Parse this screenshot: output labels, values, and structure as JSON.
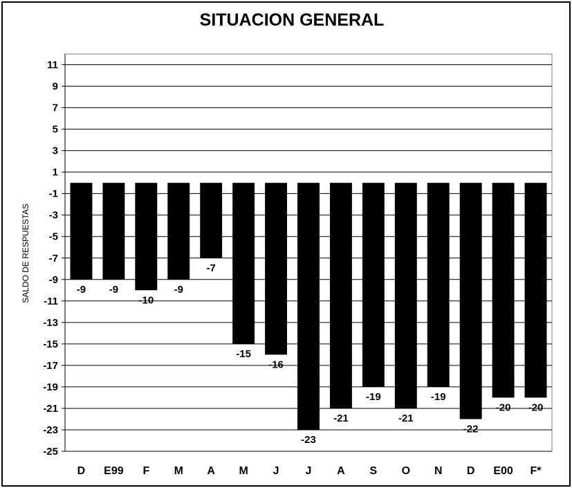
{
  "chart_data": {
    "type": "bar",
    "title": "SITUACION GENERAL",
    "xlabel": "",
    "ylabel": "SALDO DE RESPUESTAS",
    "categories": [
      "D",
      "E99",
      "F",
      "M",
      "A",
      "M",
      "J",
      "J",
      "A",
      "S",
      "O",
      "N",
      "D",
      "E00",
      "F*"
    ],
    "values": [
      -9,
      -9,
      -10,
      -9,
      -7,
      -15,
      -16,
      -23,
      -21,
      -19,
      -21,
      -19,
      -22,
      -20,
      -20
    ],
    "data_labels": [
      "-9",
      "-9",
      "-10",
      "-9",
      "-7",
      "-15",
      "-16",
      "-23",
      "-21",
      "-19",
      "-21",
      "-19",
      "-22",
      "-20",
      "-20"
    ],
    "ylim": [
      -25,
      12
    ],
    "y_ticks": [
      11,
      9,
      7,
      5,
      3,
      1,
      -1,
      -3,
      -5,
      -7,
      -9,
      -11,
      -13,
      -15,
      -17,
      -19,
      -21,
      -23,
      -25
    ],
    "grid": true,
    "legend": "none",
    "bar_color": "#000000",
    "grid_color": "#000000"
  }
}
